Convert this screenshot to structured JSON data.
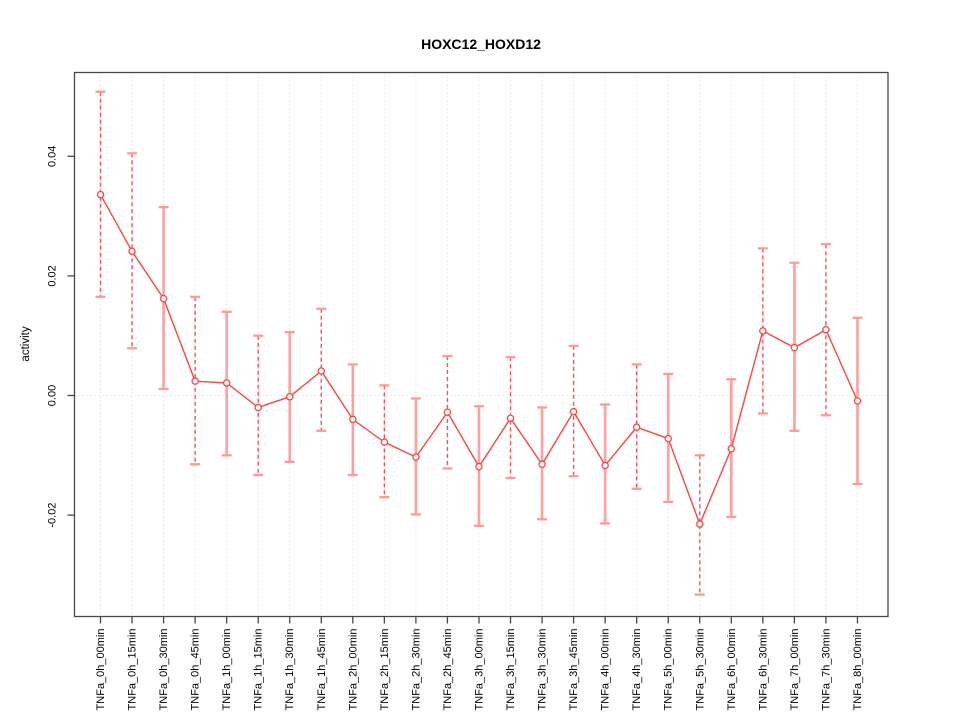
{
  "colors": {
    "series_line": "#fa4545",
    "marker_stroke": "#fa4545",
    "error_bar_dashed": "#fa5252",
    "error_bar_solid": "#ffa09e",
    "error_bar_cap": "#ff9997",
    "gridline": "#d9d9d9",
    "axis_box": "#474747",
    "text": "#000000",
    "background": "#ffffff"
  },
  "chart_data": {
    "type": "line",
    "title": "HOXC12_HOXD12",
    "xlabel": "",
    "ylabel": "activity",
    "legend": "none",
    "grid": {
      "vertical": "dotted gridline at every x tick",
      "horizontal": "dotted line at zero only"
    },
    "ylim": [
      -0.037,
      0.0545
    ],
    "yticks": [
      -0.02,
      0,
      0.02,
      0.04
    ],
    "ytick_labels": [
      "-0.02",
      "0.00",
      "0.02",
      "0.04"
    ],
    "categories": [
      "TNFa_0h_00min",
      "TNFa_0h_15min",
      "TNFa_0h_30min",
      "TNFa_0h_45min",
      "TNFa_1h_00min",
      "TNFa_1h_15min",
      "TNFa_1h_30min",
      "TNFa_1h_45min",
      "TNFa_2h_00min",
      "TNFa_2h_15min",
      "TNFa_2h_30min",
      "TNFa_2h_45min",
      "TNFa_3h_00min",
      "TNFa_3h_15min",
      "TNFa_3h_30min",
      "TNFa_3h_45min",
      "TNFa_4h_00min",
      "TNFa_4h_30min",
      "TNFa_5h_00min",
      "TNFa_5h_30min",
      "TNFa_6h_00min",
      "TNFa_6h_30min",
      "TNFa_7h_00min",
      "TNFa_7h_30min",
      "TNFa_8h_00min"
    ],
    "series": [
      {
        "name": "activity",
        "marker": "open-circle",
        "values": [
          0.0336,
          0.0241,
          0.0162,
          0.0024,
          0.0021,
          -0.002,
          -0.0002,
          0.0041,
          -0.004,
          -0.0078,
          -0.0103,
          -0.0028,
          -0.0119,
          -0.0038,
          -0.0115,
          -0.0027,
          -0.0117,
          -0.0053,
          -0.0072,
          -0.0215,
          -0.0089,
          0.0108,
          0.008,
          0.011,
          -0.0009
        ],
        "error_high": [
          0.0508,
          0.0405,
          0.0315,
          0.0165,
          0.014,
          0.01,
          0.0106,
          0.0145,
          0.0052,
          0.0017,
          -0.0005,
          0.0066,
          -0.0018,
          0.0064,
          -0.002,
          0.0083,
          -0.0015,
          0.0052,
          0.0036,
          -0.01,
          0.0027,
          0.0246,
          0.0222,
          0.0253,
          0.013
        ],
        "error_low": [
          0.0165,
          0.0079,
          0.0011,
          -0.0115,
          -0.01,
          -0.0133,
          -0.0111,
          -0.0059,
          -0.0133,
          -0.017,
          -0.0199,
          -0.0122,
          -0.0218,
          -0.0138,
          -0.0207,
          -0.0135,
          -0.0214,
          -0.0156,
          -0.0178,
          -0.0333,
          -0.0203,
          -0.003,
          -0.0059,
          -0.0033,
          -0.0148
        ],
        "error_bar_style": [
          "dashed",
          "dashed",
          "solid",
          "dashed",
          "solid",
          "dashed",
          "solid",
          "dashed",
          "solid",
          "dashed",
          "solid",
          "dashed",
          "solid",
          "dashed",
          "solid",
          "dashed",
          "solid",
          "dashed",
          "solid",
          "dashed",
          "solid",
          "dashed",
          "solid",
          "dashed",
          "solid"
        ]
      }
    ]
  }
}
